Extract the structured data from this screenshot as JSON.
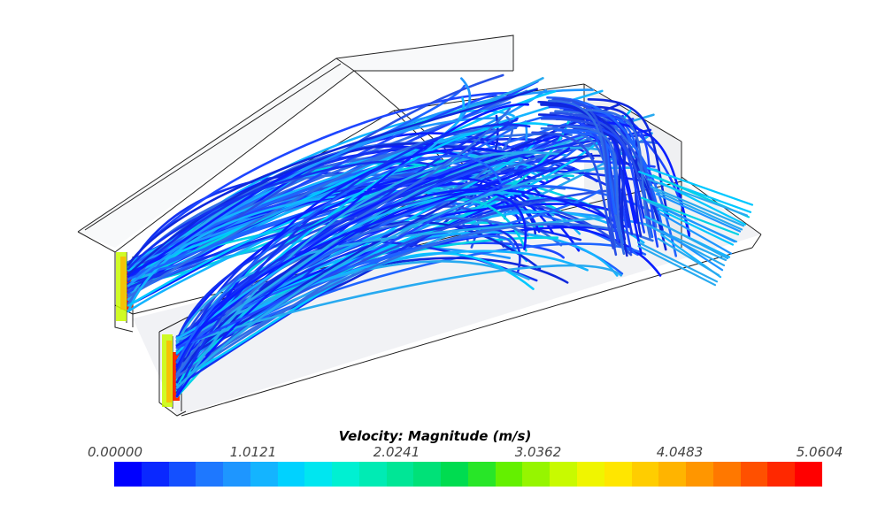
{
  "legend": {
    "title": "Velocity: Magnitude (m/s)",
    "ticks": [
      "0.00000",
      "1.0121",
      "2.0241",
      "3.0362",
      "4.0483",
      "5.0604"
    ],
    "min": 0.0,
    "max": 5.0604,
    "colors": [
      "#0000ff",
      "#0a28ff",
      "#1450ff",
      "#1e78ff",
      "#1e96ff",
      "#14b4ff",
      "#00d2ff",
      "#00e6f0",
      "#00f0d2",
      "#00ebb4",
      "#00e696",
      "#00e178",
      "#00dc50",
      "#28e628",
      "#64f000",
      "#96f500",
      "#c8fa00",
      "#f0f500",
      "#ffe600",
      "#ffcd00",
      "#ffb400",
      "#ff9600",
      "#ff7800",
      "#ff5000",
      "#ff2800",
      "#ff0000"
    ]
  },
  "scene": {
    "type": "3d-streamline-render",
    "colormap": "blue-to-red"
  }
}
